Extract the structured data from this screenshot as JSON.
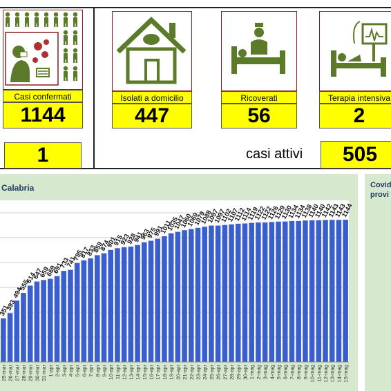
{
  "cards": [
    {
      "label": "Casi confermati",
      "value": "1144"
    },
    {
      "label": "Isolati a domicilio",
      "value": "447"
    },
    {
      "label": "Ricoverati",
      "value": "56"
    },
    {
      "label": "Terapia intensiva",
      "value": "2"
    }
  ],
  "secondary": {
    "deaths_value": "1",
    "active_label": "casi attivi",
    "active_value": "505"
  },
  "left_panel": {
    "title": "Calabria"
  },
  "right_panel": {
    "title_line1": "Covid",
    "title_line2": "provi"
  },
  "colors": {
    "bar": "#3a5fcd",
    "panel_bg": "#d6e8cd",
    "highlight": "#ffff00",
    "icon_green": "#5b7a2a",
    "icon_border": "#8b1d1d"
  },
  "chart_data": {
    "type": "bar",
    "categories": [
      "25-mar",
      "26-mar",
      "27-mar",
      "28-mar",
      "29-mar",
      "30-mar",
      "31-mar",
      "1-apr",
      "2-apr",
      "3-apr",
      "4-apr",
      "5-apr",
      "6-apr",
      "7-apr",
      "8-apr",
      "9-apr",
      "10-apr",
      "11-apr",
      "12-apr",
      "13-apr",
      "14-apr",
      "15-apr",
      "16-apr",
      "17-apr",
      "18-apr",
      "19-apr",
      "20-apr",
      "21-apr",
      "22-apr",
      "23-apr",
      "24-apr",
      "25-apr",
      "26-apr",
      "27-apr",
      "28-apr",
      "29-apr",
      "30-apr",
      "1-mag",
      "2-mag",
      "3-mag",
      "4-mag",
      "5-mag",
      "6-mag",
      "7-mag",
      "8-mag",
      "9-mag",
      "10-mag",
      "11-mag",
      "12-mag",
      "13-mag",
      "14-mag",
      "15-mag"
    ],
    "values": [
      351,
      393,
      494,
      555,
      614,
      647,
      659,
      669,
      691,
      733,
      741,
      795,
      817,
      833,
      859,
      874,
      901,
      915,
      923,
      928,
      941,
      963,
      975,
      991,
      1011,
      1035,
      1047,
      1060,
      1069,
      1079,
      1088,
      1097,
      1097,
      1102,
      1107,
      1112,
      1114,
      1119,
      1122,
      1122,
      1126,
      1129,
      1130,
      1134,
      1134,
      1138,
      1140,
      1140,
      1142,
      1143,
      1143,
      1144
    ],
    "visible_labels": [
      "351",
      "393",
      "494",
      "555",
      "614",
      "647",
      "659",
      "669",
      "691",
      "733",
      "741",
      "795",
      "817",
      "833",
      "859",
      "874",
      "901",
      "915",
      "923",
      "928",
      "941",
      "963",
      "975",
      "991",
      "1011",
      "1035",
      "1047",
      "1060",
      "1069",
      "1079",
      "1088",
      "1097",
      "1097",
      "1102",
      "1107",
      "1112",
      "1114",
      "1119",
      "1122",
      "1122",
      "1126",
      "1129",
      "1130",
      "1134",
      "1134",
      "1138",
      "1140",
      "1140",
      "1142",
      "1143",
      "1143",
      "1144"
    ],
    "ylim": [
      0,
      1300
    ]
  }
}
